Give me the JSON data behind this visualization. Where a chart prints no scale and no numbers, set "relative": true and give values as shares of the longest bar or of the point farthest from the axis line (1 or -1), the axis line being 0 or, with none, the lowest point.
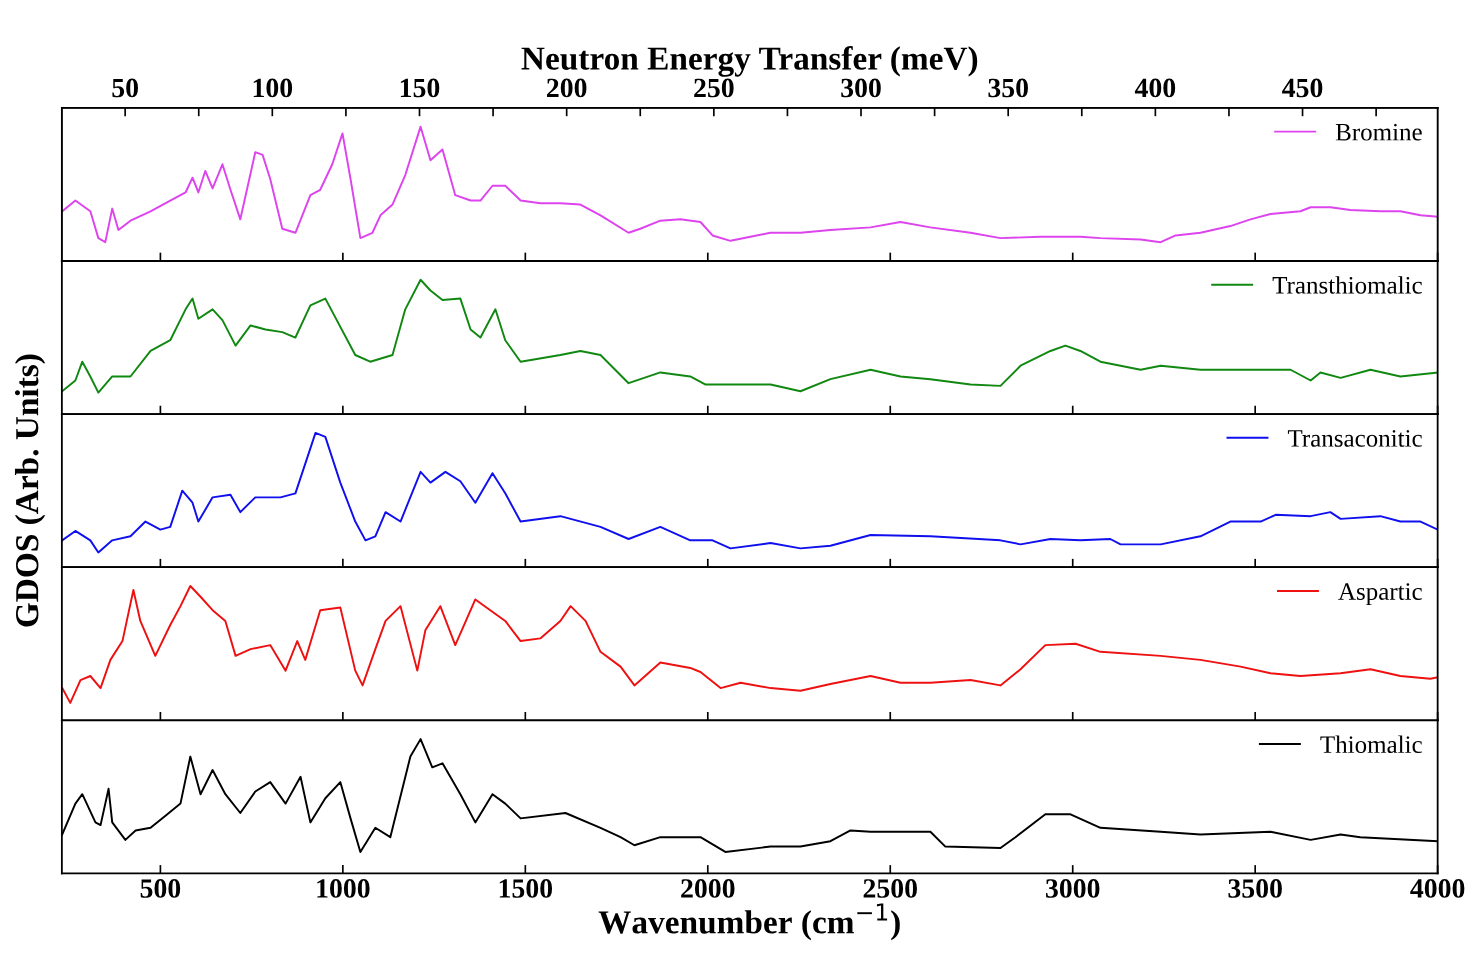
{
  "chart_data": [
    {
      "type": "line",
      "relative": true,
      "xlim": [
        230,
        4000
      ],
      "xticks": [
        500,
        1000,
        1500,
        2000,
        2500,
        3000,
        3500,
        4000
      ],
      "x2label": "Neutron Energy Transfer (meV)",
      "x2lim": [
        28.5,
        495.9
      ],
      "x2ticks": [
        50,
        {
          "value": 75,
          "label": null
        },
        100,
        {
          "value": 125,
          "label": null
        },
        150,
        {
          "value": 175,
          "label": null
        },
        200,
        {
          "value": 225,
          "label": null
        },
        250,
        {
          "value": 275,
          "label": null
        },
        300,
        {
          "value": 325,
          "label": null
        },
        350,
        {
          "value": 375,
          "label": null
        },
        400,
        {
          "value": 425,
          "label": null
        },
        450,
        {
          "value": 475,
          "label": null
        }
      ],
      "tick_labels": false,
      "legend": "top right",
      "series": [
        {
          "name": "Bromine",
          "color": "#dd44ee",
          "x": [
            231,
            267,
            308,
            330,
            349,
            368,
            385,
            418,
            473,
            527,
            569,
            588,
            604,
            623,
            643,
            670,
            692,
            719,
            760,
            780,
            801,
            834,
            870,
            911,
            938,
            971,
            999,
            1021,
            1048,
            1081,
            1103,
            1136,
            1171,
            1213,
            1240,
            1273,
            1308,
            1350,
            1377,
            1410,
            1445,
            1487,
            1541,
            1596,
            1651,
            1706,
            1783,
            1815,
            1870,
            1925,
            1980,
            2013,
            2062,
            2117,
            2172,
            2254,
            2336,
            2446,
            2528,
            2610,
            2720,
            2802,
            2912,
            3021,
            3076,
            3186,
            3241,
            3282,
            3350,
            3432,
            3487,
            3542,
            3624,
            3652,
            3706,
            3761,
            3843,
            3898,
            3953,
            4000
          ],
          "values": [
            0.37,
            0.45,
            0.37,
            0.17,
            0.14,
            0.39,
            0.23,
            0.3,
            0.37,
            0.45,
            0.51,
            0.62,
            0.51,
            0.67,
            0.54,
            0.72,
            0.53,
            0.31,
            0.81,
            0.79,
            0.61,
            0.24,
            0.21,
            0.49,
            0.53,
            0.72,
            0.95,
            0.61,
            0.17,
            0.21,
            0.34,
            0.42,
            0.64,
            1,
            0.75,
            0.83,
            0.49,
            0.45,
            0.45,
            0.56,
            0.56,
            0.45,
            0.43,
            0.43,
            0.42,
            0.34,
            0.21,
            0.24,
            0.3,
            0.31,
            0.29,
            0.19,
            0.15,
            0.18,
            0.21,
            0.21,
            0.23,
            0.25,
            0.29,
            0.25,
            0.21,
            0.17,
            0.18,
            0.18,
            0.17,
            0.16,
            0.14,
            0.19,
            0.21,
            0.26,
            0.31,
            0.35,
            0.37,
            0.4,
            0.4,
            0.38,
            0.37,
            0.37,
            0.34,
            0.33
          ]
        }
      ]
    },
    {
      "type": "line",
      "relative": true,
      "xlim": [
        230,
        4000
      ],
      "xticks": [
        500,
        1000,
        1500,
        2000,
        2500,
        3000,
        3500,
        4000
      ],
      "tick_labels": false,
      "legend": "top right",
      "series": [
        {
          "name": "Transthiomalic",
          "color": "#118811",
          "x": [
            231,
            267,
            286,
            308,
            330,
            368,
            418,
            473,
            527,
            569,
            588,
            604,
            643,
            670,
            706,
            747,
            788,
            834,
            870,
            911,
            952,
            1034,
            1075,
            1136,
            1171,
            1213,
            1240,
            1273,
            1322,
            1350,
            1377,
            1418,
            1445,
            1487,
            1596,
            1651,
            1706,
            1783,
            1870,
            1952,
            1994,
            2090,
            2172,
            2254,
            2336,
            2446,
            2528,
            2610,
            2720,
            2802,
            2857,
            2939,
            2980,
            3021,
            3076,
            3186,
            3241,
            3350,
            3432,
            3515,
            3597,
            3652,
            3679,
            3734,
            3816,
            3898,
            4000
          ],
          "values": [
            0.17,
            0.25,
            0.39,
            0.28,
            0.16,
            0.28,
            0.28,
            0.47,
            0.55,
            0.78,
            0.86,
            0.71,
            0.78,
            0.7,
            0.51,
            0.66,
            0.63,
            0.61,
            0.57,
            0.81,
            0.86,
            0.44,
            0.39,
            0.44,
            0.78,
            1,
            0.92,
            0.85,
            0.86,
            0.63,
            0.57,
            0.78,
            0.55,
            0.39,
            0.44,
            0.47,
            0.44,
            0.23,
            0.31,
            0.28,
            0.22,
            0.22,
            0.22,
            0.17,
            0.26,
            0.33,
            0.28,
            0.26,
            0.22,
            0.21,
            0.36,
            0.47,
            0.51,
            0.47,
            0.39,
            0.33,
            0.36,
            0.33,
            0.33,
            0.33,
            0.33,
            0.25,
            0.31,
            0.27,
            0.33,
            0.28,
            0.31
          ]
        }
      ]
    },
    {
      "type": "line",
      "relative": true,
      "ylabel": "GDOS (Arb. Units)",
      "xlim": [
        230,
        4000
      ],
      "xticks": [
        500,
        1000,
        1500,
        2000,
        2500,
        3000,
        3500,
        4000
      ],
      "tick_labels": false,
      "legend": "top right",
      "series": [
        {
          "name": "Transaconitic",
          "color": "#1010ee",
          "x": [
            231,
            267,
            308,
            330,
            368,
            418,
            459,
            500,
            527,
            560,
            588,
            604,
            643,
            692,
            719,
            760,
            829,
            870,
            925,
            952,
            993,
            1034,
            1062,
            1089,
            1117,
            1158,
            1213,
            1240,
            1281,
            1322,
            1363,
            1410,
            1445,
            1487,
            1596,
            1706,
            1783,
            1870,
            1952,
            2013,
            2062,
            2172,
            2254,
            2336,
            2446,
            2610,
            2802,
            2857,
            2939,
            3021,
            3103,
            3131,
            3241,
            3350,
            3432,
            3515,
            3556,
            3652,
            3706,
            3734,
            3843,
            3898,
            3953,
            4000
          ],
          "values": [
            0.2,
            0.27,
            0.2,
            0.11,
            0.2,
            0.23,
            0.34,
            0.28,
            0.3,
            0.57,
            0.48,
            0.34,
            0.52,
            0.54,
            0.41,
            0.52,
            0.52,
            0.55,
            1,
            0.97,
            0.63,
            0.34,
            0.2,
            0.23,
            0.41,
            0.34,
            0.71,
            0.63,
            0.71,
            0.64,
            0.48,
            0.7,
            0.55,
            0.34,
            0.38,
            0.3,
            0.21,
            0.3,
            0.2,
            0.2,
            0.14,
            0.18,
            0.14,
            0.16,
            0.24,
            0.23,
            0.2,
            0.17,
            0.21,
            0.2,
            0.21,
            0.17,
            0.17,
            0.23,
            0.34,
            0.34,
            0.39,
            0.38,
            0.41,
            0.36,
            0.38,
            0.34,
            0.34,
            0.28
          ]
        }
      ]
    },
    {
      "type": "line",
      "relative": true,
      "xlim": [
        230,
        4000
      ],
      "xticks": [
        500,
        1000,
        1500,
        2000,
        2500,
        3000,
        3500,
        4000
      ],
      "tick_labels": false,
      "legend": "top right",
      "series": [
        {
          "name": "Aspartic",
          "color": "#ee1111",
          "x": [
            231,
            253,
            281,
            308,
            336,
            363,
            396,
            426,
            445,
            486,
            527,
            555,
            582,
            610,
            643,
            678,
            706,
            747,
            801,
            843,
            875,
            897,
            938,
            993,
            1034,
            1054,
            1089,
            1117,
            1158,
            1204,
            1226,
            1267,
            1308,
            1363,
            1404,
            1445,
            1487,
            1541,
            1596,
            1624,
            1665,
            1706,
            1761,
            1799,
            1870,
            1952,
            1980,
            2035,
            2090,
            2172,
            2254,
            2336,
            2446,
            2528,
            2610,
            2720,
            2802,
            2857,
            2925,
            3008,
            3076,
            3241,
            3350,
            3460,
            3542,
            3624,
            3734,
            3816,
            3898,
            3980,
            4000
          ],
          "values": [
            0.24,
            0.13,
            0.3,
            0.33,
            0.24,
            0.45,
            0.59,
            0.97,
            0.74,
            0.48,
            0.71,
            0.85,
            1,
            0.92,
            0.82,
            0.74,
            0.48,
            0.53,
            0.56,
            0.37,
            0.59,
            0.45,
            0.82,
            0.84,
            0.37,
            0.26,
            0.53,
            0.74,
            0.85,
            0.37,
            0.67,
            0.85,
            0.56,
            0.9,
            0.82,
            0.74,
            0.59,
            0.61,
            0.74,
            0.85,
            0.74,
            0.51,
            0.4,
            0.26,
            0.43,
            0.39,
            0.36,
            0.24,
            0.28,
            0.24,
            0.22,
            0.27,
            0.33,
            0.28,
            0.28,
            0.3,
            0.26,
            0.38,
            0.56,
            0.57,
            0.51,
            0.48,
            0.45,
            0.4,
            0.35,
            0.33,
            0.35,
            0.38,
            0.33,
            0.31,
            0.32
          ]
        }
      ]
    },
    {
      "type": "line",
      "relative": true,
      "xlabel": "Wavenumber (cm$^{−1}$)",
      "xlim": [
        230,
        4000
      ],
      "xticks": [
        500,
        1000,
        1500,
        2000,
        2500,
        3000,
        3500,
        4000
      ],
      "tick_labels": "x",
      "legend": "top right",
      "series": [
        {
          "name": "Thiomalic",
          "color": "#000000",
          "x": [
            231,
            267,
            286,
            322,
            336,
            358,
            368,
            404,
            432,
            473,
            514,
            555,
            582,
            610,
            643,
            678,
            719,
            760,
            801,
            843,
            884,
            911,
            952,
            993,
            1021,
            1048,
            1089,
            1130,
            1185,
            1213,
            1245,
            1273,
            1322,
            1363,
            1410,
            1445,
            1487,
            1610,
            1706,
            1761,
            1799,
            1870,
            1980,
            2048,
            2172,
            2254,
            2336,
            2391,
            2446,
            2610,
            2651,
            2802,
            2843,
            2925,
            2994,
            3076,
            3241,
            3350,
            3542,
            3652,
            3734,
            3788,
            4000
          ],
          "values": [
            0.29,
            0.52,
            0.59,
            0.38,
            0.36,
            0.63,
            0.38,
            0.25,
            0.32,
            0.34,
            0.43,
            0.52,
            0.87,
            0.59,
            0.77,
            0.59,
            0.45,
            0.61,
            0.68,
            0.52,
            0.72,
            0.38,
            0.56,
            0.68,
            0.41,
            0.16,
            0.34,
            0.27,
            0.87,
            1,
            0.79,
            0.82,
            0.59,
            0.38,
            0.59,
            0.52,
            0.41,
            0.45,
            0.34,
            0.27,
            0.21,
            0.27,
            0.27,
            0.16,
            0.2,
            0.2,
            0.24,
            0.32,
            0.31,
            0.31,
            0.2,
            0.19,
            0.27,
            0.44,
            0.44,
            0.34,
            0.31,
            0.29,
            0.31,
            0.25,
            0.29,
            0.27,
            0.24
          ]
        }
      ]
    }
  ]
}
